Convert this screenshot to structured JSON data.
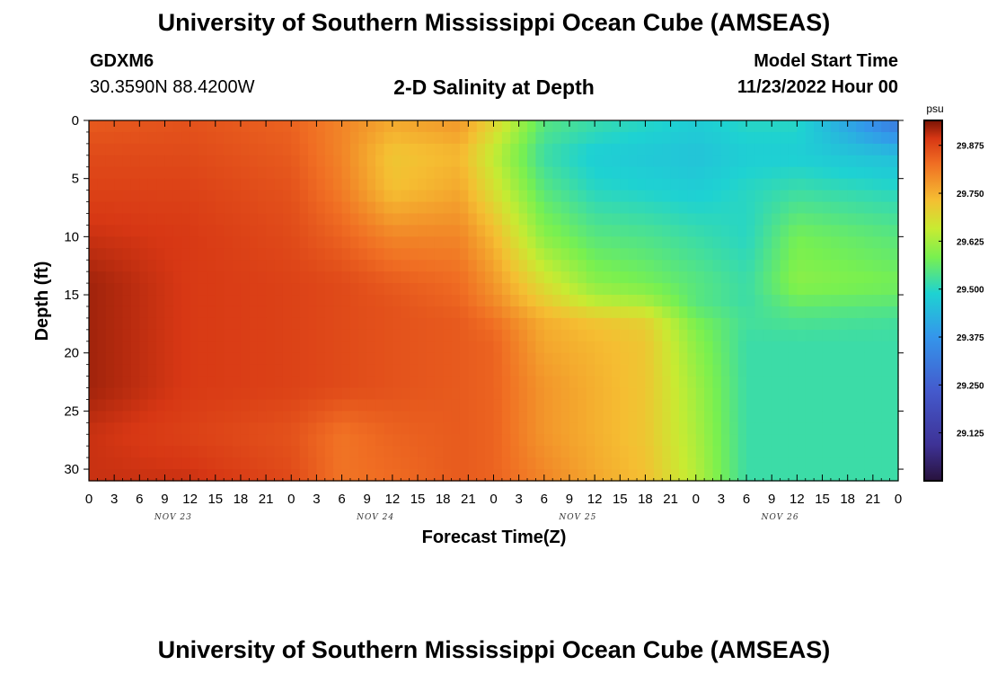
{
  "page": {
    "title_top": "University of Southern Mississippi Ocean Cube (AMSEAS)",
    "title_bottom": "University of Southern Mississippi Ocean Cube (AMSEAS)",
    "station_id": "GDXM6",
    "station_coords": "30.3590N  88.4200W",
    "plot_title": "2-D Salinity at Depth",
    "model_start_label": "Model Start Time",
    "model_start_value": "11/23/2022 Hour 00"
  },
  "chart_data": {
    "type": "heatmap",
    "title": "2-D Salinity at Depth",
    "xlabel": "Forecast Time(Z)",
    "ylabel": "Depth (ft)",
    "x_hours_range": [
      0,
      96
    ],
    "ylim": [
      0,
      31
    ],
    "y_inverted": true,
    "x_tick_labels": [
      "0",
      "3",
      "6",
      "9",
      "12",
      "15",
      "18",
      "21",
      "0",
      "3",
      "6",
      "9",
      "12",
      "15",
      "18",
      "21",
      "0",
      "3",
      "6",
      "9",
      "12",
      "15",
      "18",
      "21",
      "0",
      "3",
      "6",
      "9",
      "12",
      "15",
      "18",
      "21",
      "0"
    ],
    "day_labels": [
      "NOV 23",
      "NOV 24",
      "NOV 25",
      "NOV 26"
    ],
    "y_tick_labels": [
      "0",
      "5",
      "10",
      "15",
      "20",
      "25",
      "30"
    ],
    "y_ticks": [
      0,
      5,
      10,
      15,
      20,
      25,
      30
    ],
    "colorbar": {
      "unit": "psu",
      "range": [
        29.0,
        29.94
      ],
      "tick_labels": [
        "29.875",
        "29.750",
        "29.625",
        "29.500",
        "29.375",
        "29.250",
        "29.125"
      ],
      "ticks": [
        29.875,
        29.75,
        29.625,
        29.5,
        29.375,
        29.25,
        29.125
      ]
    },
    "depth_levels_ft": [
      0,
      3,
      6,
      10,
      14,
      16,
      17,
      19,
      23,
      27,
      31
    ],
    "times_hours": [
      0,
      12,
      24,
      30,
      36,
      44,
      48,
      54,
      60,
      66,
      72,
      78,
      84,
      96
    ],
    "salinity_psu": [
      [
        29.85,
        29.86,
        29.84,
        29.8,
        29.76,
        29.78,
        29.7,
        29.55,
        29.52,
        29.5,
        29.48,
        29.5,
        29.5,
        29.3
      ],
      [
        29.87,
        29.87,
        29.85,
        29.8,
        29.72,
        29.74,
        29.65,
        29.52,
        29.48,
        29.47,
        29.46,
        29.48,
        29.48,
        29.45
      ],
      [
        29.88,
        29.88,
        29.86,
        29.81,
        29.73,
        29.76,
        29.68,
        29.55,
        29.5,
        29.49,
        29.48,
        29.5,
        29.52,
        29.5
      ],
      [
        29.9,
        29.89,
        29.87,
        29.84,
        29.8,
        29.8,
        29.74,
        29.6,
        29.55,
        29.54,
        29.52,
        29.5,
        29.58,
        29.55
      ],
      [
        29.92,
        29.89,
        29.88,
        29.87,
        29.85,
        29.83,
        29.78,
        29.68,
        29.6,
        29.58,
        29.55,
        29.52,
        29.6,
        29.58
      ],
      [
        29.92,
        29.89,
        29.88,
        29.87,
        29.86,
        29.84,
        29.8,
        29.72,
        29.66,
        29.64,
        29.55,
        29.52,
        29.56,
        29.55
      ],
      [
        29.92,
        29.89,
        29.88,
        29.87,
        29.86,
        29.85,
        29.82,
        29.75,
        29.72,
        29.7,
        29.58,
        29.53,
        29.54,
        29.53
      ],
      [
        29.92,
        29.89,
        29.88,
        29.87,
        29.86,
        29.85,
        29.84,
        29.76,
        29.74,
        29.72,
        29.6,
        29.52,
        29.52,
        29.52
      ],
      [
        29.92,
        29.89,
        29.88,
        29.87,
        29.86,
        29.85,
        29.84,
        29.78,
        29.75,
        29.72,
        29.62,
        29.52,
        29.52,
        29.52
      ],
      [
        29.9,
        29.88,
        29.86,
        29.82,
        29.84,
        29.85,
        29.84,
        29.78,
        29.75,
        29.72,
        29.63,
        29.52,
        29.52,
        29.52
      ],
      [
        29.9,
        29.9,
        29.87,
        29.82,
        29.83,
        29.85,
        29.84,
        29.8,
        29.76,
        29.73,
        29.64,
        29.52,
        29.52,
        29.52
      ]
    ]
  }
}
